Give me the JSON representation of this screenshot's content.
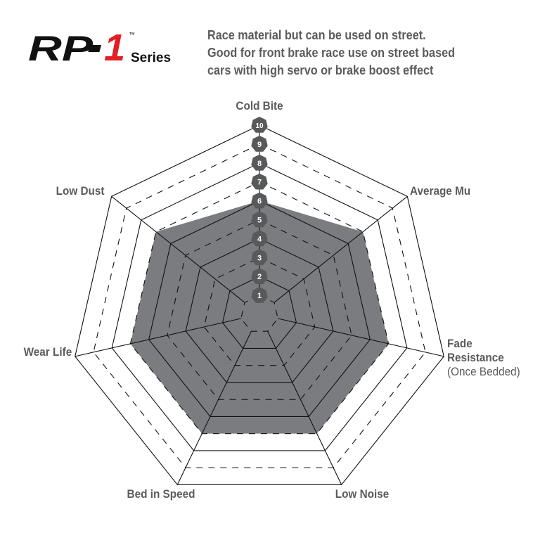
{
  "logo": {
    "text": "RP-1",
    "tm": "™",
    "series": "Series"
  },
  "description": [
    "Race material but can be used on street.",
    "Good for front brake race use on street based",
    "cars with high servo or brake boost effect"
  ],
  "chart_data": {
    "type": "radar",
    "axes": [
      "Cold Bite",
      "Average Mu",
      "Fade Resistance",
      "Low Noise",
      "Bed in Speed",
      "Wear Life",
      "Low Dust"
    ],
    "axis_sublabels": {
      "Fade Resistance": "(Once Bedded)"
    },
    "values": [
      6,
      7,
      7,
      7,
      7,
      7,
      7
    ],
    "range": [
      0,
      10
    ],
    "tick_labels": [
      "1",
      "2",
      "3",
      "4",
      "5",
      "6",
      "7",
      "8",
      "9",
      "10"
    ],
    "fill_color": "#7b7c7f",
    "badge_color": "#58595b"
  }
}
